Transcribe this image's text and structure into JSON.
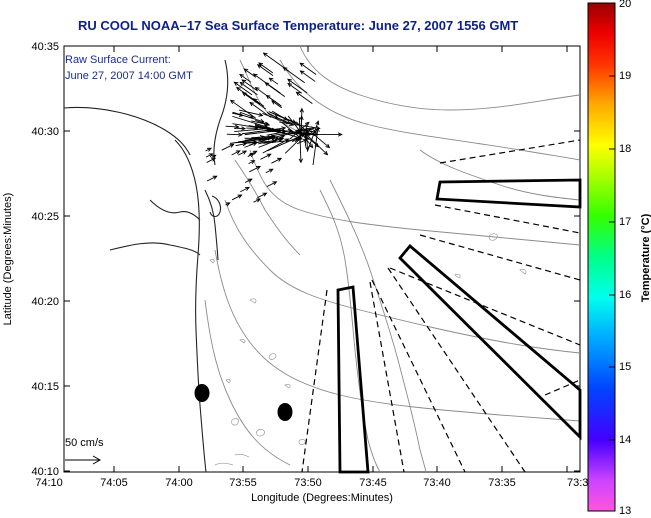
{
  "title": "RU COOL   NOAA–17  Sea Surface Temperature:  June 27, 2007 1556 GMT",
  "legend": {
    "line1": "Raw Surface Current:",
    "line2": "June 27, 2007 14:00 GMT",
    "scale_label": "50 cm/s"
  },
  "axes": {
    "xlabel": "Longitude (Degrees:Minutes)",
    "ylabel": "Latitude (Degrees:Minutes)",
    "x_ticks": [
      "74:10",
      "74:05",
      "74:00",
      "73:55",
      "73:50",
      "73:45",
      "73:40",
      "73:35",
      "73:3"
    ],
    "y_ticks": [
      "40:35",
      "40:30",
      "40:25",
      "40:20",
      "40:15",
      "40:10"
    ]
  },
  "colorbar": {
    "title": "Temperature (°C)",
    "ticks": [
      "20",
      "19",
      "18",
      "17",
      "16",
      "15",
      "14",
      "13"
    ],
    "range": [
      13,
      20
    ]
  },
  "colors": {
    "title": "#0b1f8f",
    "legend_text": "#1a2a9f",
    "contour": "#8a8a8a",
    "coast": "#222222"
  }
}
